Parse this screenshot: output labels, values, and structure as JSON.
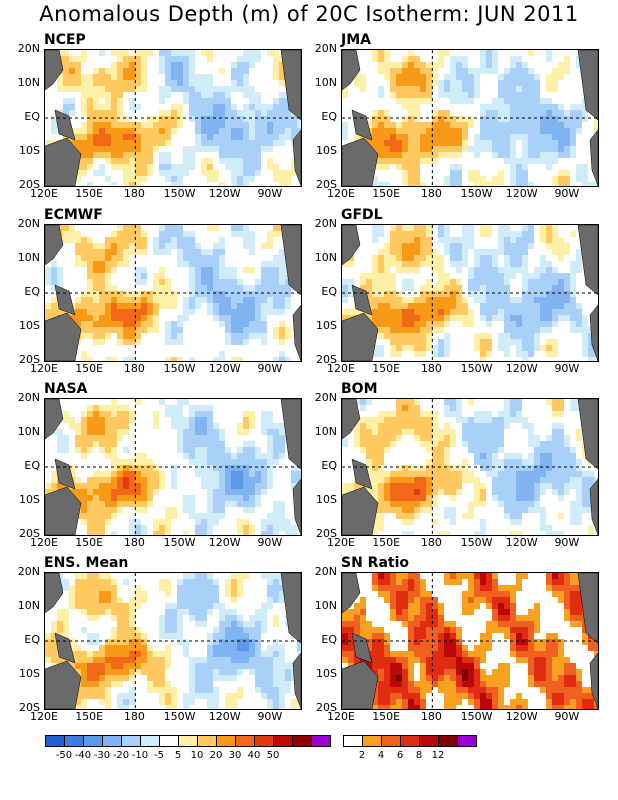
{
  "title": "Anomalous Depth (m) of 20C Isotherm: JUN 2011",
  "chart_data": {
    "type": "heatmap",
    "x_ticks": [
      "120E",
      "150E",
      "180",
      "150W",
      "120W",
      "90W"
    ],
    "y_ticks": [
      "20N",
      "10N",
      "EQ",
      "10S",
      "20S"
    ],
    "xlim": [
      120,
      290
    ],
    "ylim": [
      -20,
      20
    ],
    "panels": [
      {
        "title": "NCEP"
      },
      {
        "title": "JMA"
      },
      {
        "title": "ECMWF"
      },
      {
        "title": "GFDL"
      },
      {
        "title": "NASA"
      },
      {
        "title": "BOM"
      },
      {
        "title": "ENS. Mean"
      },
      {
        "title": "SN Ratio"
      }
    ],
    "anomaly_colorbar": {
      "colors": [
        "#2060d0",
        "#3c7ee0",
        "#5c98e8",
        "#80b4f0",
        "#a8d0f8",
        "#d0ecf8",
        "#ffffff",
        "#fff0a8",
        "#ffc860",
        "#f89a18",
        "#f06818",
        "#e03c10",
        "#c00808",
        "#8c0000",
        "#9a00d0"
      ],
      "labels": [
        "-50",
        "-40",
        "-30",
        "-20",
        "-10",
        "-5",
        "5",
        "10",
        "20",
        "30",
        "40",
        "50"
      ]
    },
    "snr_colorbar": {
      "colors": [
        "#ffffff",
        "#f8a020",
        "#f06020",
        "#e02c10",
        "#b80808",
        "#800000",
        "#9a00d0"
      ],
      "labels": [
        "2",
        "4",
        "6",
        "8",
        "12"
      ]
    }
  }
}
